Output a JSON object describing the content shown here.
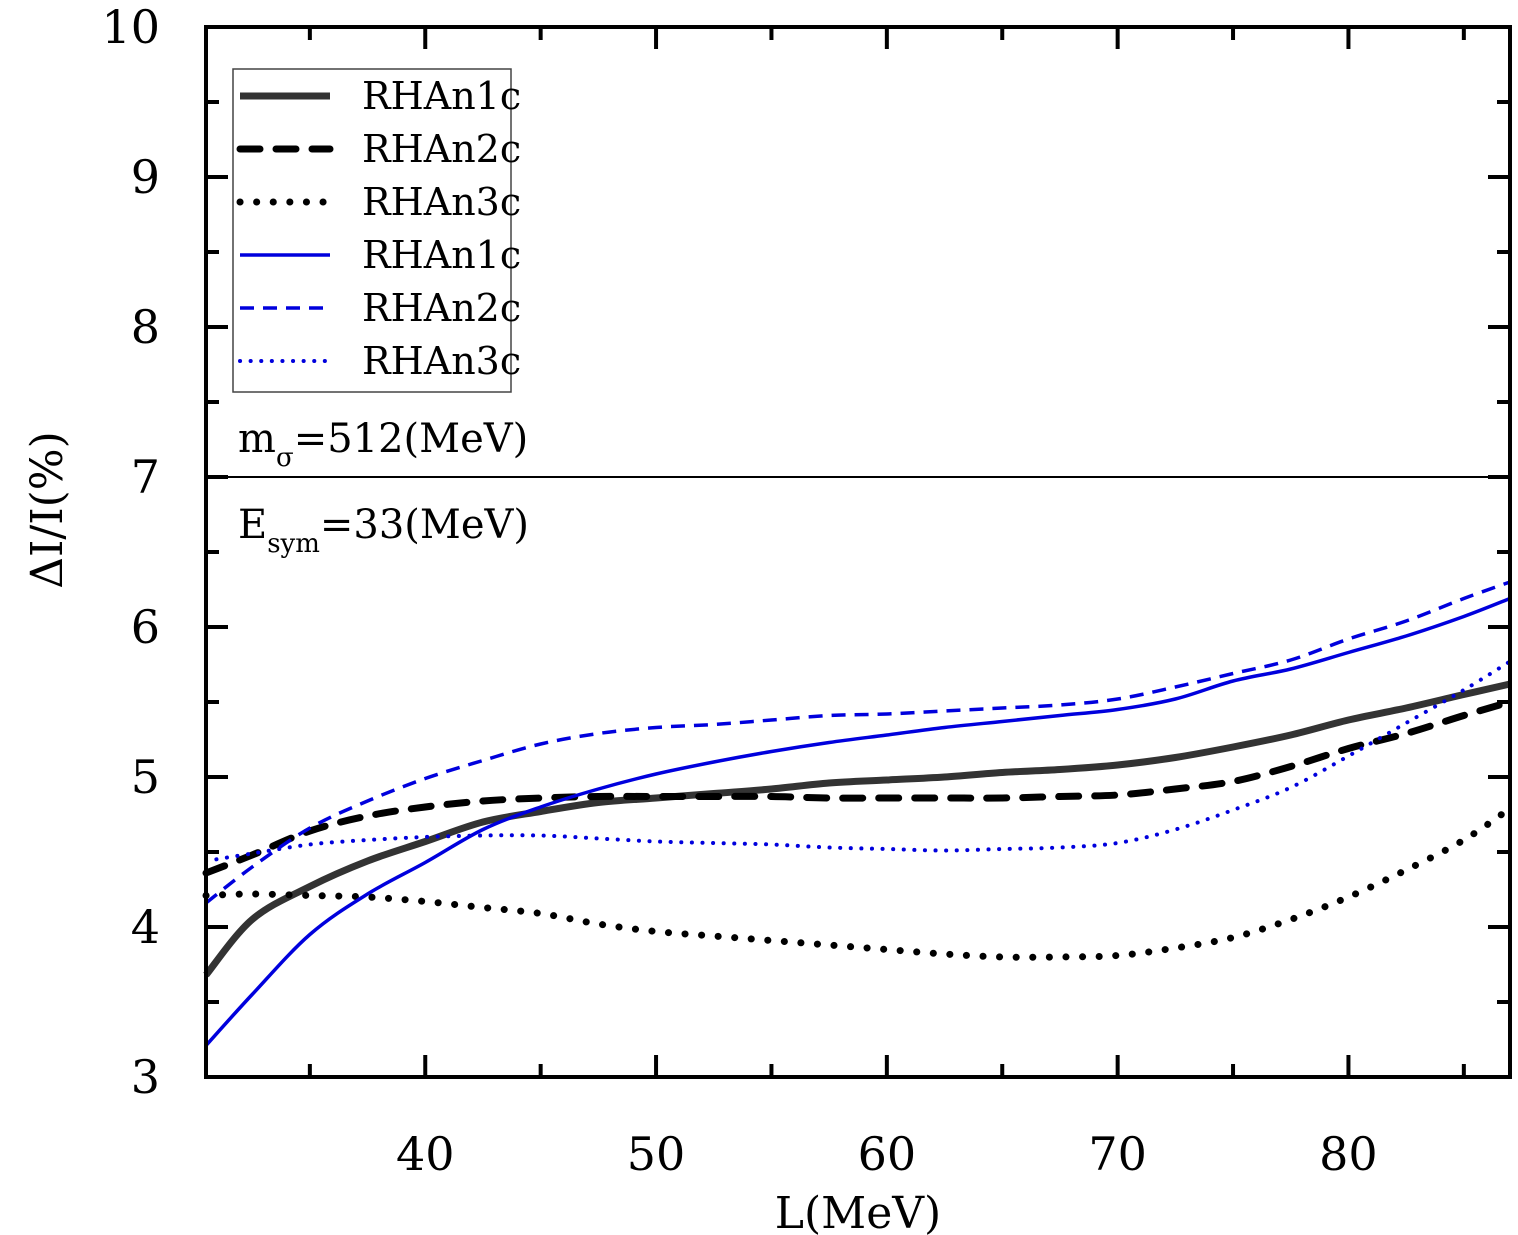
{
  "chart_data": {
    "type": "line",
    "title": "",
    "xlabel": "L(MeV)",
    "ylabel": "ΔI/I(%)",
    "xlim": [
      30.5,
      87
    ],
    "ylim": [
      3,
      10
    ],
    "x_ticks": [
      40,
      50,
      60,
      70,
      80
    ],
    "x_tick_labels": [
      "40",
      "50",
      "60",
      "70",
      "80"
    ],
    "x_minor_ticks": [
      35,
      45,
      55,
      65,
      75,
      85
    ],
    "y_ticks": [
      3,
      4,
      5,
      6,
      7,
      8,
      9,
      10
    ],
    "y_tick_labels": [
      "3",
      "4",
      "5",
      "6",
      "7",
      "8",
      "9",
      "10"
    ],
    "y_minor_ticks": [
      3.5,
      4.5,
      5.5,
      6.5,
      7.5,
      8.5,
      9.5
    ],
    "grid": false,
    "legend_position": "top-left",
    "x": [
      30.5,
      32.5,
      35,
      37.5,
      40,
      42.5,
      45,
      47.5,
      50,
      52.5,
      55,
      57.5,
      60,
      62.5,
      65,
      67.5,
      70,
      72.5,
      75,
      77.5,
      80,
      82.5,
      85,
      87
    ],
    "series": [
      {
        "name": "RHAn1c",
        "color": "#333333",
        "style": "solid-thick",
        "values": [
          3.68,
          4.05,
          4.27,
          4.44,
          4.57,
          4.7,
          4.77,
          4.83,
          4.86,
          4.89,
          4.92,
          4.96,
          4.98,
          5.0,
          5.03,
          5.05,
          5.08,
          5.13,
          5.2,
          5.28,
          5.38,
          5.46,
          5.55,
          5.62
        ]
      },
      {
        "name": "RHAn2c",
        "color": "#000000",
        "style": "dashed-thick",
        "values": [
          4.36,
          4.48,
          4.64,
          4.74,
          4.8,
          4.84,
          4.86,
          4.87,
          4.87,
          4.87,
          4.87,
          4.86,
          4.86,
          4.86,
          4.86,
          4.87,
          4.88,
          4.92,
          4.97,
          5.07,
          5.19,
          5.29,
          5.41,
          5.5
        ]
      },
      {
        "name": "RHAn3c",
        "color": "#000000",
        "style": "dotted-thick",
        "values": [
          4.21,
          4.22,
          4.21,
          4.2,
          4.17,
          4.13,
          4.09,
          4.02,
          3.97,
          3.94,
          3.91,
          3.88,
          3.85,
          3.82,
          3.8,
          3.8,
          3.81,
          3.86,
          3.93,
          4.05,
          4.2,
          4.38,
          4.58,
          4.79
        ]
      },
      {
        "name": "RHAn1c",
        "color": "#0000dd",
        "style": "solid-thin",
        "values": [
          3.21,
          3.55,
          3.95,
          4.22,
          4.43,
          4.65,
          4.8,
          4.92,
          5.02,
          5.1,
          5.17,
          5.23,
          5.28,
          5.33,
          5.37,
          5.41,
          5.45,
          5.52,
          5.64,
          5.72,
          5.83,
          5.94,
          6.07,
          6.19
        ]
      },
      {
        "name": "RHAn2c",
        "color": "#0000dd",
        "style": "dashed-thin",
        "values": [
          4.16,
          4.4,
          4.66,
          4.84,
          4.99,
          5.11,
          5.22,
          5.29,
          5.33,
          5.35,
          5.38,
          5.41,
          5.42,
          5.44,
          5.46,
          5.48,
          5.52,
          5.6,
          5.69,
          5.78,
          5.92,
          6.04,
          6.19,
          6.3
        ]
      },
      {
        "name": "RHAn3c",
        "color": "#0000dd",
        "style": "dotted-thin",
        "values": [
          4.44,
          4.49,
          4.55,
          4.58,
          4.6,
          4.61,
          4.61,
          4.59,
          4.57,
          4.56,
          4.55,
          4.53,
          4.52,
          4.51,
          4.52,
          4.53,
          4.56,
          4.65,
          4.78,
          4.93,
          5.14,
          5.36,
          5.58,
          5.77
        ]
      }
    ],
    "reference_line": {
      "axis": "y",
      "value": 7
    },
    "annotations": [
      {
        "main": "m",
        "sub": "σ",
        "rest": "=512(MeV)"
      },
      {
        "main": "E",
        "sub": "sym",
        "rest": "=33(MeV)"
      }
    ]
  }
}
